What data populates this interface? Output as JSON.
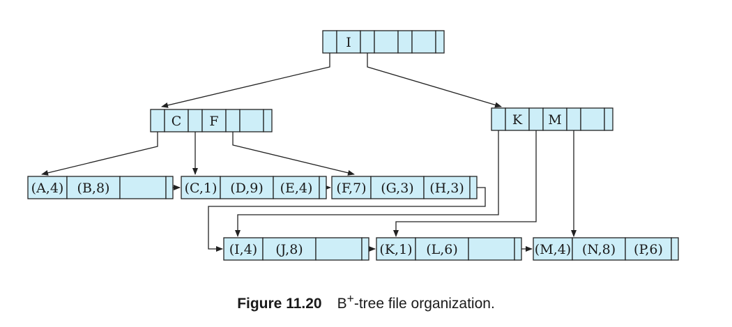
{
  "colors": {
    "node_fill": "#cdeef8",
    "stroke": "#222222",
    "text": "#1a1a1a"
  },
  "tree": {
    "root": {
      "keys": [
        "I"
      ]
    },
    "internal": [
      {
        "keys": [
          "C",
          "F"
        ]
      },
      {
        "keys": [
          "K",
          "M"
        ]
      }
    ],
    "leaves": [
      {
        "records": [
          "(A,4)",
          "(B,8)",
          ""
        ]
      },
      {
        "records": [
          "(C,1)",
          "(D,9)",
          "(E,4)"
        ]
      },
      {
        "records": [
          "(F,7)",
          "(G,3)",
          "(H,3)"
        ]
      },
      {
        "records": [
          "(I,4)",
          "(J,8)",
          ""
        ]
      },
      {
        "records": [
          "(K,1)",
          "(L,6)",
          ""
        ]
      },
      {
        "records": [
          "(M,4)",
          "(N,8)",
          "(P,6)"
        ]
      }
    ]
  },
  "caption": {
    "label": "Figure 11.20",
    "text_prefix": "B",
    "superscript": "+",
    "text_suffix": "-tree file organization."
  }
}
